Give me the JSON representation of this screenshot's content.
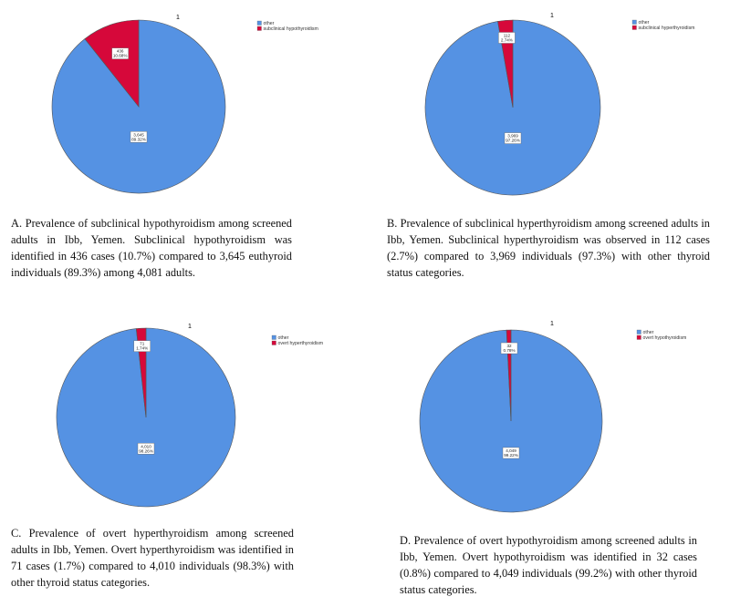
{
  "chart_data": [
    {
      "type": "pie",
      "title": "1",
      "categories": [
        "other",
        "subclinical hypothyroidism"
      ],
      "values": [
        3645,
        436
      ],
      "labels": [
        [
          "3,645",
          "89.32%"
        ],
        [
          "436",
          "10.68%"
        ]
      ],
      "colors": [
        "#5592e3",
        "#d6083a"
      ],
      "legend": [
        "other",
        "subclinical hypothyroidism"
      ],
      "legend_position": "top-right",
      "caption": "A. Prevalence of subclinical hypothyroidism among screened adults in Ibb, Yemen. Subclinical hypothyroidism was identified in 436 cases (10.7%) compared to 3,645 euthyroid individuals (89.3%) among 4,081 adults."
    },
    {
      "type": "pie",
      "title": "1",
      "categories": [
        "other",
        "subclinical hyperthyroidism"
      ],
      "values": [
        3969,
        112
      ],
      "labels": [
        [
          "3,969",
          "97.26%"
        ],
        [
          "112",
          "2.74%"
        ]
      ],
      "colors": [
        "#5592e3",
        "#d6083a"
      ],
      "legend": [
        "other",
        "subclinical hyperthyroidism"
      ],
      "legend_position": "top-right",
      "caption": "B. Prevalence of subclinical hyperthyroidism among screened adults in Ibb, Yemen. Subclinical hyperthyroidism was observed in 112 cases (2.7%) compared to 3,969 individuals (97.3%) with other thyroid status categories."
    },
    {
      "type": "pie",
      "title": "1",
      "categories": [
        "other",
        "overt hyperthyroidism"
      ],
      "values": [
        4010,
        71
      ],
      "labels": [
        [
          "4,010",
          "98.26%"
        ],
        [
          "71",
          "1.74%"
        ]
      ],
      "colors": [
        "#5592e3",
        "#d6083a"
      ],
      "legend": [
        "other",
        "overt hyperthyroidism"
      ],
      "legend_position": "top-right",
      "caption": "C. Prevalence of overt hyperthyroidism among screened adults in Ibb, Yemen. Overt hyperthyroidism was identified in 71 cases (1.7%) compared to 4,010 individuals (98.3%) with other thyroid status categories."
    },
    {
      "type": "pie",
      "title": "1",
      "categories": [
        "other",
        "overt hypothyroidism"
      ],
      "values": [
        4049,
        32
      ],
      "labels": [
        [
          "4,049",
          "99.22%"
        ],
        [
          "32",
          "0.78%"
        ]
      ],
      "colors": [
        "#5592e3",
        "#d6083a"
      ],
      "legend": [
        "other",
        "overt hypothyroidism"
      ],
      "legend_position": "top-right",
      "caption": "D. Prevalence of overt hypothyroidism among screened adults in Ibb, Yemen. Overt hypothyroidism was identified in 32 cases (0.8%) compared to 4,049 individuals (99.2%) with other thyroid status categories."
    }
  ]
}
